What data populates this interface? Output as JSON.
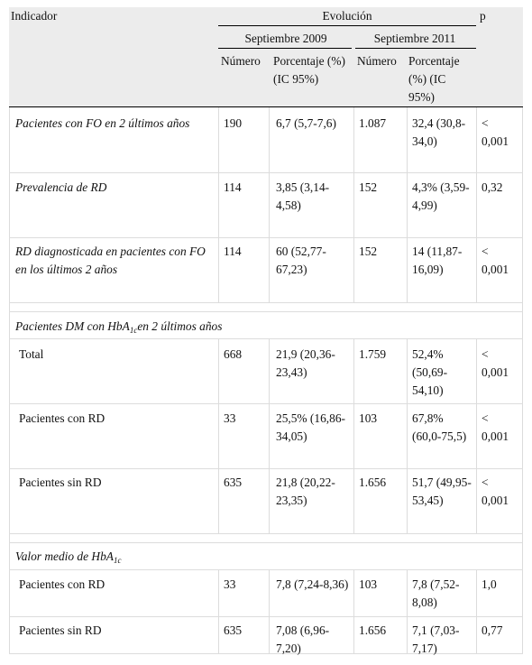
{
  "header": {
    "indicador": "Indicador",
    "evolucion": "Evolución",
    "p": "p",
    "periods": [
      "Septiembre 2009",
      "Septiembre 2011"
    ],
    "numero": "Número",
    "porcentaje": "Porcentaje (%) (IC 95%)"
  },
  "rows": [
    {
      "label": "Pacientes con FO en 2 últimos años",
      "n2009": "190",
      "pct2009": "6,7 (5,7-7,6)",
      "n2011": "1.087",
      "pct2011": "32,4 (30,8-34,0)",
      "p": "< 0,001"
    },
    {
      "label": "Prevalencia de RD",
      "n2009": "114",
      "pct2009": "3,85 (3,14-4,58)",
      "n2011": "152",
      "pct2011": "4,3% (3,59-4,99)",
      "p": "0,32"
    },
    {
      "label": "RD diagnosticada en pacientes con FO en los últimos 2 años",
      "n2009": "114",
      "pct2009": "60 (52,77-67,23)",
      "n2011": "152",
      "pct2011": "14 (11,87-16,09)",
      "p": "< 0,001"
    }
  ],
  "section_hba1c": {
    "title_pre": "Pacientes DM con HbA",
    "title_sub": "1c",
    "title_post": "en 2 últimos años",
    "rows": [
      {
        "label": "Total",
        "n2009": "668",
        "pct2009": "21,9 (20,36-23,43)",
        "n2011": "1.759",
        "pct2011": "52,4% (50,69-54,10)",
        "p": "< 0,001"
      },
      {
        "label": "Pacientes con RD",
        "n2009": "33",
        "pct2009": "25,5% (16,86-34,05)",
        "n2011": "103",
        "pct2011": "67,8% (60,0-75,5)",
        "p": "< 0,001"
      },
      {
        "label": "Pacientes sin RD",
        "n2009": "635",
        "pct2009": "21,8 (20,22-23,35)",
        "n2011": "1.656",
        "pct2011": "51,7 (49,95-53,45)",
        "p": "< 0,001"
      }
    ]
  },
  "section_valor": {
    "title_pre": "Valor medio de HbA",
    "title_sub": "1c",
    "rows": [
      {
        "label": "Pacientes con RD",
        "n2009": "33",
        "pct2009": "7,8 (7,24-8,36)",
        "n2011": "103",
        "pct2011": "7,8 (7,52-8,08)",
        "p": "1,0"
      },
      {
        "label": "Pacientes sin RD",
        "n2009": "635",
        "pct2009": "7,08 (6,96-7,20)",
        "n2011": "1.656",
        "pct2011": "7,1 (7,03-7,17)",
        "p": "0,77"
      }
    ]
  }
}
